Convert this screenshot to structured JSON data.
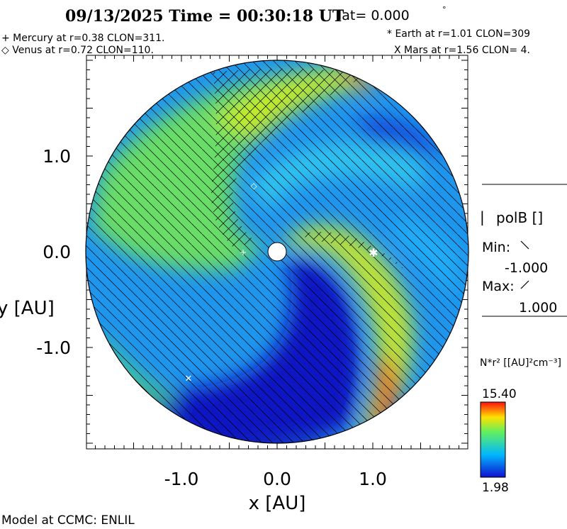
{
  "header": {
    "title": "09/13/2025 Time = 00:30:18 UT",
    "lat_label": "lat= 0.000",
    "degree_symbol": "°"
  },
  "planets": {
    "mercury": "+ Mercury at r=0.38 CLON=311.",
    "venus": "◇ Venus at r=0.72 CLON=110.",
    "earth": "* Earth at  r=1.01 CLON=309",
    "mars": "X Mars at r=1.56 CLON=  4."
  },
  "polarity": {
    "label": "polB []",
    "min_label": "Min:",
    "min_value": "-1.000",
    "max_label": "Max:",
    "max_value": "1.000"
  },
  "colorbar": {
    "quantity": "N*r² [[AU]²cm⁻³]",
    "max": "15.40",
    "min": "1.98"
  },
  "footer": "Model at CCMC: ENLIL",
  "chart_data": {
    "type": "heatmap",
    "title": "09/13/2025 Time = 00:30:18 UT",
    "xlabel": "x [AU]",
    "ylabel": "y [AU]",
    "xlim": [
      -2,
      2
    ],
    "ylim": [
      -2,
      2
    ],
    "xticks": [
      "-1.0",
      "0.0",
      "1.0"
    ],
    "yticks": [
      "1.0",
      "0.0",
      "-1.0"
    ],
    "xtick_values": [
      -1,
      0,
      1
    ],
    "ytick_values": [
      1,
      0,
      -1
    ],
    "domain_radius_au": 2.0,
    "inner_boundary_au": 0.1,
    "colorscale": {
      "min": 1.98,
      "max": 15.4,
      "colors": [
        "#0000c0",
        "#00c8ff",
        "#ffff00",
        "#ff0000"
      ]
    },
    "markers": [
      {
        "name": "Mercury",
        "symbol": "+",
        "r": 0.38,
        "clon": 311
      },
      {
        "name": "Venus",
        "symbol": "◇",
        "r": 0.72,
        "clon": 110
      },
      {
        "name": "Earth",
        "symbol": "*",
        "r": 1.01,
        "clon": 309
      },
      {
        "name": "Mars",
        "symbol": "X",
        "r": 1.56,
        "clon": 4
      }
    ]
  }
}
